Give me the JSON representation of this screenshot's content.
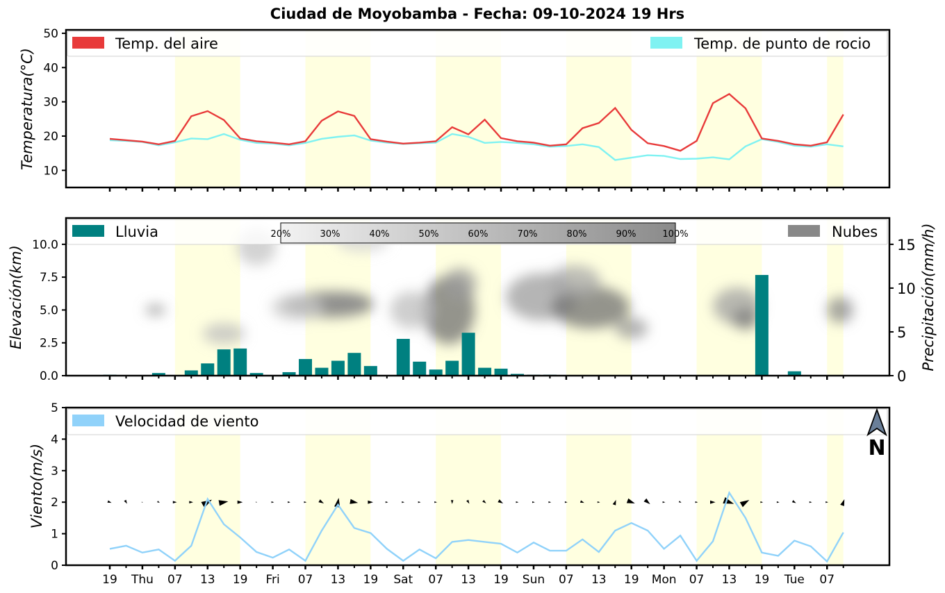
{
  "title": "Ciudad de Moyobamba   -   Fecha: 09-10-2024 19 Hrs",
  "colors": {
    "air_temp": "#e83a3a",
    "dew_point": "#7ff2f2",
    "rain": "#008080",
    "clouds": "#888888",
    "wind": "#90d2fa",
    "day_band": "#ffffe0"
  },
  "x_ticks": [
    "19",
    "Thu",
    "07",
    "13",
    "19",
    "Fri",
    "07",
    "13",
    "19",
    "Sat",
    "07",
    "13",
    "19",
    "Sun",
    "07",
    "13",
    "19",
    "Mon",
    "07",
    "13",
    "19",
    "Tue",
    "07"
  ],
  "chart_data": [
    {
      "type": "line",
      "ylabel": "Temperatura(°C)",
      "ylim": [
        5,
        51
      ],
      "yticks": [
        "10",
        "20",
        "30",
        "40",
        "50"
      ],
      "legend": {
        "left": "Temp. del aire",
        "right": "Temp. de punto de rocio"
      },
      "series": [
        {
          "name": "Temp. del aire",
          "values": [
            19.2,
            18.8,
            18.4,
            17.6,
            18.6,
            25.8,
            27.3,
            24.7,
            19.3,
            18.5,
            18.1,
            17.6,
            18.5,
            24.5,
            27.2,
            25.9,
            19.1,
            18.4,
            17.8,
            18.1,
            18.5,
            22.6,
            20.5,
            24.8,
            19.4,
            18.5,
            18.1,
            17.2,
            17.6,
            22.3,
            23.8,
            28.2,
            21.8,
            17.9,
            17.1,
            15.7,
            18.6,
            29.6,
            32.3,
            28.1,
            19.3,
            18.6,
            17.6,
            17.2,
            18.2,
            26.3
          ]
        },
        {
          "name": "Temp. de punto de rocio",
          "values": [
            18.8,
            18.6,
            18.3,
            17.3,
            18.2,
            19.3,
            19.1,
            20.6,
            18.9,
            18.0,
            17.8,
            17.3,
            18.0,
            19.2,
            19.8,
            20.2,
            18.7,
            18.1,
            17.7,
            17.9,
            18.1,
            20.6,
            19.8,
            18.0,
            18.3,
            18.0,
            17.6,
            16.9,
            17.1,
            17.6,
            16.8,
            13.0,
            13.7,
            14.4,
            14.2,
            13.3,
            13.4,
            13.8,
            13.2,
            17.0,
            19.1,
            18.3,
            17.2,
            16.9,
            17.6,
            17.0
          ]
        }
      ]
    },
    {
      "type": "bar",
      "ylabel": "Elevación(km)",
      "ylabel_right": "Precipitación(mm/h)",
      "ylim": [
        0,
        12
      ],
      "ylim_right": [
        0,
        18
      ],
      "yticks": [
        "0.0",
        "2.5",
        "5.0",
        "7.5",
        "10.0"
      ],
      "yticks_right": [
        "0",
        "5",
        "10",
        "15"
      ],
      "legend": {
        "left": "Lluvia",
        "right": "Nubes"
      },
      "colorbar_labels": [
        "20%",
        "30%",
        "40%",
        "50%",
        "60%",
        "70%",
        "80%",
        "90%",
        "100%"
      ],
      "series": [
        {
          "name": "Lluvia",
          "values": [
            0.1,
            0.0,
            0.0,
            0.3,
            0.0,
            0.6,
            1.4,
            3.0,
            3.1,
            0.3,
            0.0,
            0.4,
            1.9,
            0.9,
            1.7,
            2.6,
            1.1,
            0.0,
            4.2,
            1.6,
            0.7,
            1.7,
            4.9,
            0.9,
            0.8,
            0.2,
            0.1,
            0.1,
            0.0,
            0.0,
            0.0,
            0.0,
            0.0,
            0.0,
            0.0,
            0.0,
            0.0,
            0.0,
            0.0,
            0.0,
            11.5,
            0.0,
            0.5,
            0.0,
            0.0,
            0.0
          ]
        }
      ]
    },
    {
      "type": "line",
      "ylabel": "Viento(m/s)",
      "ylim": [
        0,
        5
      ],
      "yticks": [
        "0",
        "1",
        "2",
        "3",
        "4",
        "5"
      ],
      "legend": {
        "left": "Velocidad de viento"
      },
      "compass_label": "N",
      "series": [
        {
          "name": "Velocidad de viento",
          "values": [
            0.52,
            0.62,
            0.4,
            0.5,
            0.14,
            0.62,
            2.1,
            1.3,
            0.88,
            0.42,
            0.24,
            0.5,
            0.14,
            1.1,
            1.92,
            1.18,
            1.02,
            0.52,
            0.14,
            0.5,
            0.22,
            0.74,
            0.8,
            0.74,
            0.68,
            0.4,
            0.72,
            0.46,
            0.46,
            0.82,
            0.42,
            1.1,
            1.34,
            1.1,
            0.52,
            0.94,
            0.14,
            0.76,
            2.3,
            1.5,
            0.4,
            0.3,
            0.78,
            0.6,
            0.12,
            1.04
          ]
        }
      ]
    }
  ]
}
